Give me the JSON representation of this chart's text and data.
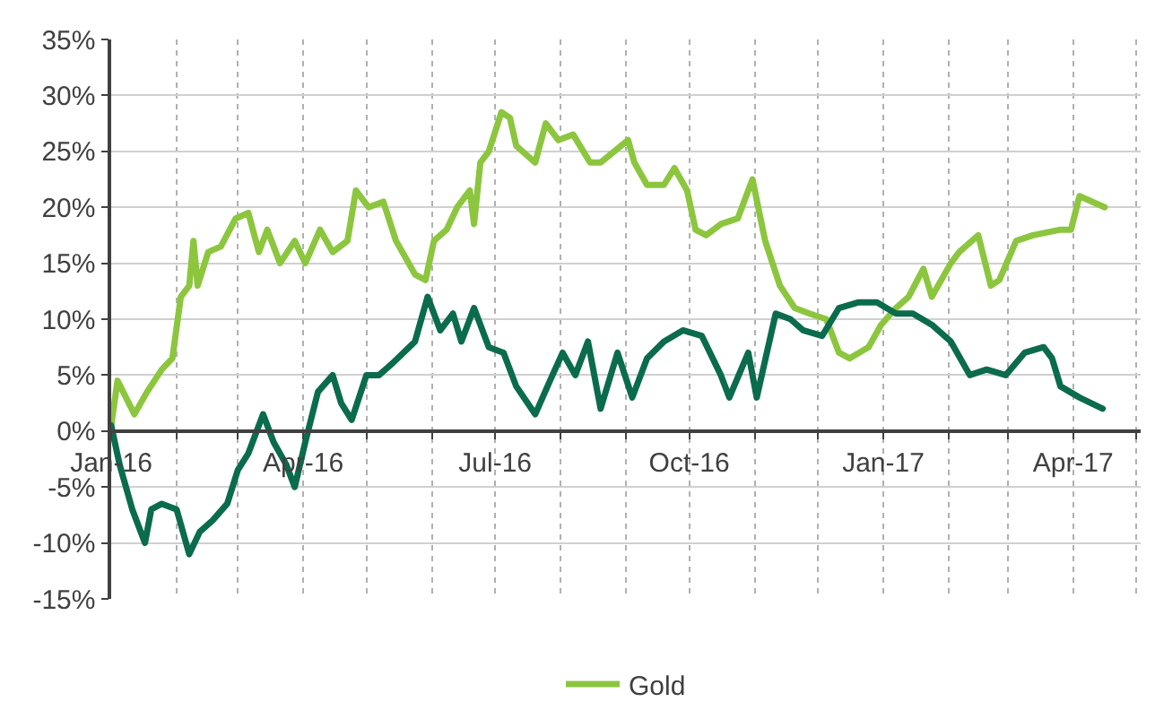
{
  "chart_data": {
    "type": "line",
    "series": [
      {
        "name": "Gold",
        "color": "#8cc63e",
        "x": [
          "2016-01-01",
          "2016-01-04",
          "2016-01-08",
          "2016-01-12",
          "2016-01-18",
          "2016-01-25",
          "2016-01-30",
          "2016-02-03",
          "2016-02-07",
          "2016-02-09",
          "2016-02-11",
          "2016-02-16",
          "2016-02-22",
          "2016-02-29",
          "2016-03-06",
          "2016-03-11",
          "2016-03-15",
          "2016-03-21",
          "2016-03-28",
          "2016-04-02",
          "2016-04-09",
          "2016-04-15",
          "2016-04-22",
          "2016-04-26",
          "2016-05-02",
          "2016-05-09",
          "2016-05-15",
          "2016-05-24",
          "2016-05-29",
          "2016-06-02",
          "2016-06-08",
          "2016-06-13",
          "2016-06-19",
          "2016-06-21",
          "2016-06-24",
          "2016-06-28",
          "2016-07-04",
          "2016-07-08",
          "2016-07-11",
          "2016-07-20",
          "2016-07-25",
          "2016-07-31",
          "2016-08-07",
          "2016-08-15",
          "2016-08-20",
          "2016-09-02",
          "2016-09-05",
          "2016-09-11",
          "2016-09-19",
          "2016-09-24",
          "2016-09-30",
          "2016-10-04",
          "2016-10-09",
          "2016-10-16",
          "2016-10-24",
          "2016-10-31",
          "2016-11-06",
          "2016-11-13",
          "2016-11-20",
          "2016-11-27",
          "2016-12-05",
          "2016-12-11",
          "2016-12-16",
          "2016-12-25",
          "2016-12-31",
          "2017-01-07",
          "2017-01-13",
          "2017-01-20",
          "2017-01-24",
          "2017-02-02",
          "2017-02-06",
          "2017-02-15",
          "2017-02-21",
          "2017-02-25",
          "2017-03-05",
          "2017-03-13",
          "2017-03-26",
          "2017-03-31",
          "2017-04-04",
          "2017-04-10",
          "2017-04-16"
        ],
        "values": [
          0.5,
          4.5,
          3,
          1.5,
          3.5,
          5.5,
          6.5,
          12,
          13,
          17,
          13,
          16,
          16.5,
          19,
          19.5,
          16,
          18,
          15,
          17,
          15,
          18,
          16,
          17,
          21.5,
          20,
          20.5,
          17,
          14,
          13.5,
          17,
          18,
          20,
          21.5,
          18.5,
          24,
          25,
          28.5,
          28,
          25.5,
          24,
          27.5,
          26,
          26.5,
          24,
          24,
          26,
          24,
          22,
          22,
          23.5,
          21.5,
          18,
          17.5,
          18.5,
          19,
          22.5,
          17,
          13,
          11,
          10.5,
          10,
          7,
          6.5,
          7.5,
          9.5,
          11,
          12,
          14.5,
          12,
          15,
          16,
          17.5,
          13,
          13.5,
          17,
          17.5,
          18,
          18,
          21,
          20.5,
          20
        ]
      },
      {
        "color": "#0b6b4d",
        "x": [
          "2016-01-01",
          "2016-01-05",
          "2016-01-11",
          "2016-01-17",
          "2016-01-20",
          "2016-01-25",
          "2016-02-01",
          "2016-02-07",
          "2016-02-12",
          "2016-02-18",
          "2016-02-25",
          "2016-03-01",
          "2016-03-06",
          "2016-03-13",
          "2016-03-18",
          "2016-03-24",
          "2016-03-28",
          "2016-04-02",
          "2016-04-08",
          "2016-04-15",
          "2016-04-19",
          "2016-04-24",
          "2016-05-01",
          "2016-05-07",
          "2016-05-13",
          "2016-05-24",
          "2016-05-30",
          "2016-06-05",
          "2016-06-11",
          "2016-06-15",
          "2016-06-21",
          "2016-06-28",
          "2016-07-05",
          "2016-07-11",
          "2016-07-20",
          "2016-07-27",
          "2016-08-02",
          "2016-08-08",
          "2016-08-14",
          "2016-08-20",
          "2016-08-28",
          "2016-09-04",
          "2016-09-11",
          "2016-09-19",
          "2016-09-28",
          "2016-10-07",
          "2016-10-16",
          "2016-10-20",
          "2016-10-29",
          "2016-11-02",
          "2016-11-11",
          "2016-11-18",
          "2016-11-24",
          "2016-12-03",
          "2016-12-11",
          "2016-12-20",
          "2016-12-29",
          "2017-01-07",
          "2017-01-15",
          "2017-01-24",
          "2017-02-02",
          "2017-02-11",
          "2017-02-19",
          "2017-02-28",
          "2017-03-09",
          "2017-03-18",
          "2017-03-22",
          "2017-03-26",
          "2017-04-04",
          "2017-04-15"
        ],
        "values": [
          0.5,
          -3,
          -7,
          -10,
          -7,
          -6.5,
          -7,
          -11,
          -9,
          -8,
          -6.5,
          -3.5,
          -2,
          1.5,
          -1,
          -3,
          -5,
          -1,
          3.5,
          5,
          2.5,
          1,
          5,
          5,
          6,
          8,
          12,
          9,
          10.5,
          8,
          11,
          7.5,
          7,
          4,
          1.5,
          4.5,
          7,
          5,
          8,
          2,
          7,
          3,
          6.5,
          8,
          9,
          8.5,
          5,
          3,
          7,
          3,
          10.5,
          10,
          9,
          8.5,
          11,
          11.5,
          11.5,
          10.5,
          10.5,
          9.5,
          8,
          5,
          5.5,
          5,
          7,
          7.5,
          6.5,
          4,
          3,
          2
        ]
      }
    ],
    "xlim": [
      "2016-01-01",
      "2017-05-03"
    ],
    "xticks": [
      {
        "value": "2016-01-01",
        "label": "Jan-16"
      },
      {
        "value": "2016-02-01",
        "label": null
      },
      {
        "value": "2016-03-01",
        "label": null
      },
      {
        "value": "2016-04-01",
        "label": "Apr-16"
      },
      {
        "value": "2016-05-01",
        "label": null
      },
      {
        "value": "2016-06-01",
        "label": null
      },
      {
        "value": "2016-07-01",
        "label": "Jul-16"
      },
      {
        "value": "2016-08-01",
        "label": null
      },
      {
        "value": "2016-09-01",
        "label": null
      },
      {
        "value": "2016-10-01",
        "label": "Oct-16"
      },
      {
        "value": "2016-11-01",
        "label": null
      },
      {
        "value": "2016-12-01",
        "label": null
      },
      {
        "value": "2017-01-01",
        "label": "Jan-17"
      },
      {
        "value": "2017-02-01",
        "label": null
      },
      {
        "value": "2017-03-01",
        "label": null
      },
      {
        "value": "2017-04-01",
        "label": "Apr-17"
      },
      {
        "value": "2017-05-01",
        "label": null
      }
    ],
    "ylim": [
      -15,
      35
    ],
    "yticks": [
      {
        "value": -15,
        "label": "-15%"
      },
      {
        "value": -10,
        "label": "-10%"
      },
      {
        "value": -5,
        "label": "-5%"
      },
      {
        "value": 0,
        "label": "0%"
      },
      {
        "value": 5,
        "label": "5%"
      },
      {
        "value": 10,
        "label": "10%"
      },
      {
        "value": 15,
        "label": "15%"
      },
      {
        "value": 20,
        "label": "20%"
      },
      {
        "value": 25,
        "label": "25%"
      },
      {
        "value": 30,
        "label": "30%"
      },
      {
        "value": 35,
        "label": "35%"
      }
    ],
    "grid": true,
    "legend": "bottom",
    "marker": "none",
    "line_style": "solid"
  }
}
